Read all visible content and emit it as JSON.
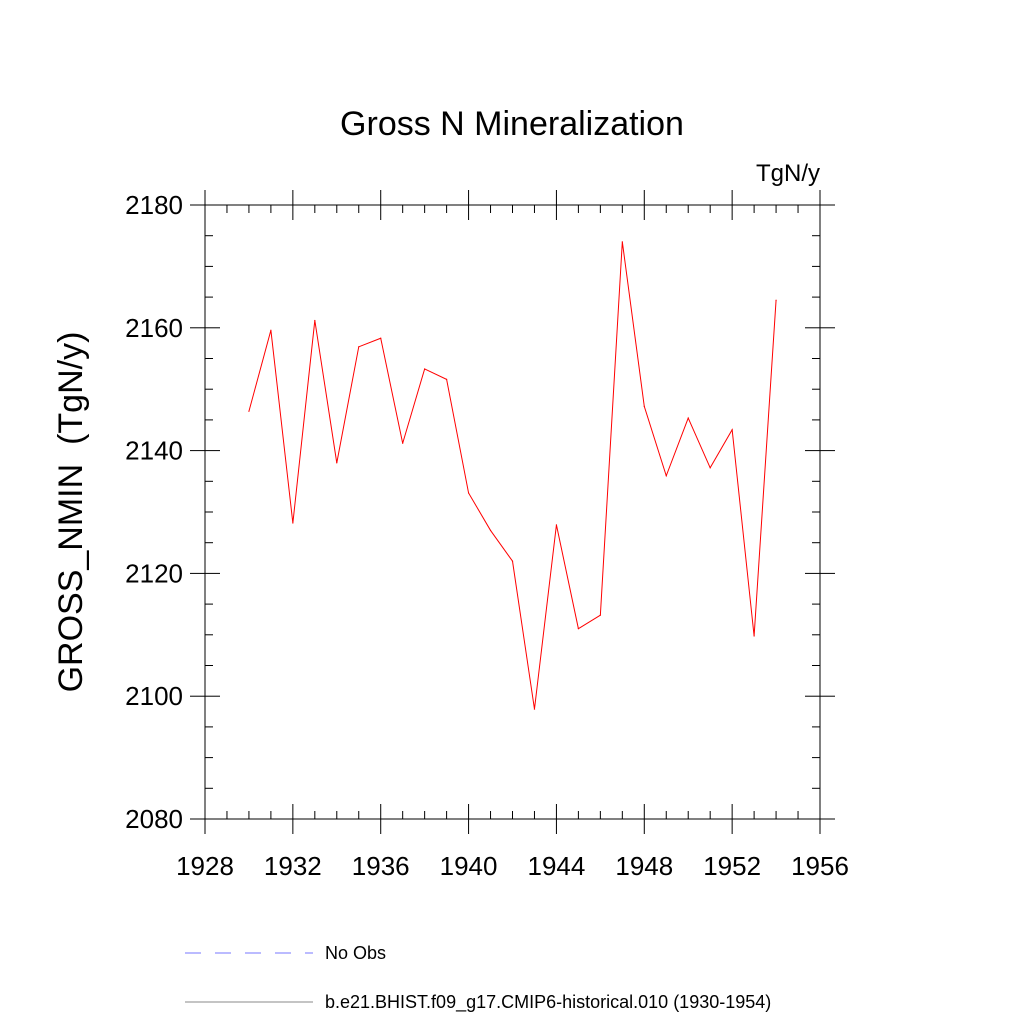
{
  "chart_data": {
    "type": "line",
    "title": "Gross N Mineralization",
    "units_label": "TgN/y",
    "xlabel": "",
    "ylabel": "GROSS_NMIN  (TgN/y)",
    "xlim": [
      1928,
      1956
    ],
    "ylim": [
      2080,
      2180
    ],
    "x_ticks": [
      "1928",
      "1932",
      "1936",
      "1940",
      "1944",
      "1948",
      "1952",
      "1956"
    ],
    "y_ticks": [
      "2080",
      "2100",
      "2120",
      "2140",
      "2160",
      "2180"
    ],
    "grid": false,
    "series": [
      {
        "name": "b.e21.BHIST.f09_g17.CMIP6-historical.010 (1930-1954)",
        "color": "#ff0000",
        "x": [
          1930,
          1931,
          1932,
          1933,
          1934,
          1935,
          1936,
          1937,
          1938,
          1939,
          1940,
          1941,
          1942,
          1943,
          1944,
          1945,
          1946,
          1947,
          1948,
          1949,
          1950,
          1951,
          1952,
          1953,
          1954
        ],
        "y": [
          2146.4,
          2159.6,
          2128.2,
          2161.2,
          2138.0,
          2156.9,
          2158.3,
          2141.2,
          2153.3,
          2151.6,
          2133.1,
          2127.0,
          2122.0,
          2097.9,
          2127.9,
          2111.0,
          2113.2,
          2174.0,
          2147.2,
          2135.9,
          2145.3,
          2137.2,
          2143.4,
          2109.8,
          2164.5
        ]
      }
    ],
    "legend": {
      "placement": "bottom",
      "entries": [
        {
          "label": "No Obs",
          "color": "#7777ff",
          "style": "dashed"
        },
        {
          "label": "b.e21.BHIST.f09_g17.CMIP6-historical.010 (1930-1954)",
          "color": "#888888",
          "style": "solid"
        }
      ]
    }
  }
}
